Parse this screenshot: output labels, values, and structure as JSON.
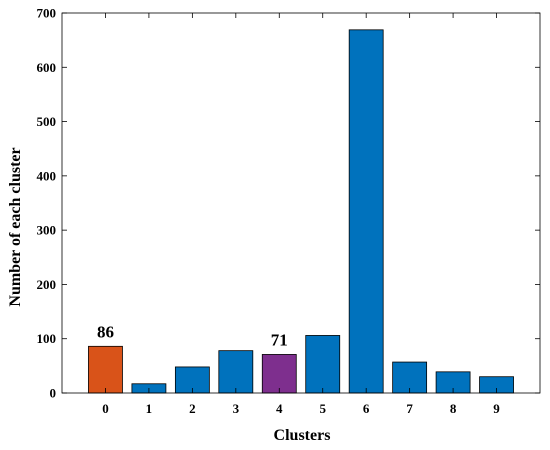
{
  "chart_data": {
    "type": "bar",
    "categories": [
      "0",
      "1",
      "2",
      "3",
      "4",
      "5",
      "6",
      "7",
      "8",
      "9"
    ],
    "values": [
      86,
      17,
      48,
      78,
      71,
      106,
      669,
      57,
      39,
      30
    ],
    "xlabel": "Clusters",
    "ylabel": "Number of each cluster",
    "ylim": [
      0,
      700
    ],
    "yticks": [
      0,
      100,
      200,
      300,
      400,
      500,
      600,
      700
    ],
    "grid": false,
    "legend": "none",
    "bar_colors": [
      "#D95319",
      "#0072BD",
      "#0072BD",
      "#0072BD",
      "#7E2F8E",
      "#0072BD",
      "#0072BD",
      "#0072BD",
      "#0072BD",
      "#0072BD"
    ],
    "data_labels": [
      {
        "category": "0",
        "text": "86"
      },
      {
        "category": "4",
        "text": "71"
      }
    ]
  }
}
